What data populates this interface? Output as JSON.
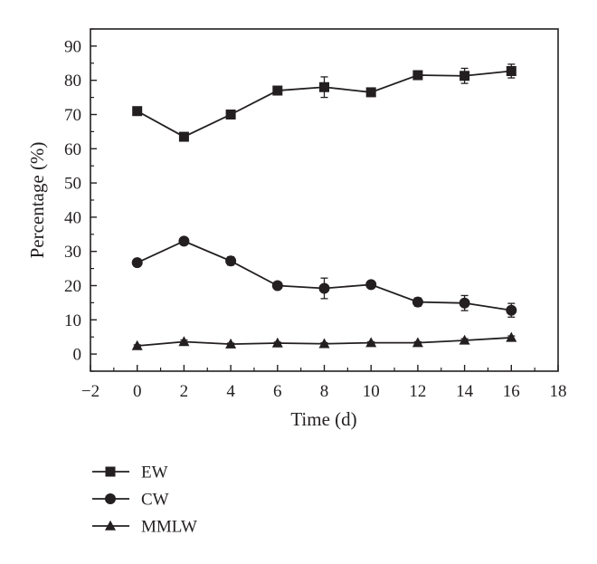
{
  "chart_data": {
    "type": "line",
    "title": "",
    "xlabel": "Time (d)",
    "ylabel": "Percentage (%)",
    "xlim": [
      -2,
      18
    ],
    "ylim": [
      -5,
      95
    ],
    "xticks": [
      -2,
      0,
      2,
      4,
      6,
      8,
      10,
      12,
      14,
      16,
      18
    ],
    "xtick_labels": [
      "−2",
      "0",
      "2",
      "4",
      "6",
      "8",
      "10",
      "12",
      "14",
      "16",
      "18"
    ],
    "yticks": [
      0,
      10,
      20,
      30,
      40,
      50,
      60,
      70,
      80,
      90
    ],
    "ytick_labels": [
      "0",
      "10",
      "20",
      "30",
      "40",
      "50",
      "60",
      "70",
      "80",
      "90"
    ],
    "grid": false,
    "legend_position": "below",
    "x": [
      0,
      2,
      4,
      6,
      8,
      10,
      12,
      14,
      16
    ],
    "series": [
      {
        "name": "EW",
        "marker": "square",
        "color": "#231f20",
        "values": [
          71,
          63.5,
          70,
          77,
          78,
          76.5,
          81.5,
          81.3,
          82.7
        ],
        "errors": [
          1,
          0.5,
          1.2,
          0.5,
          3,
          0.5,
          1.2,
          2.2,
          2
        ]
      },
      {
        "name": "CW",
        "marker": "circle",
        "color": "#231f20",
        "values": [
          26.7,
          33,
          27.2,
          20,
          19.2,
          20.3,
          15.2,
          14.9,
          12.8
        ],
        "errors": [
          1,
          0.5,
          1.2,
          0.5,
          3,
          0.5,
          1.2,
          2.2,
          2
        ]
      },
      {
        "name": "MMLW",
        "marker": "triangle",
        "color": "#231f20",
        "values": [
          2.4,
          3.6,
          2.9,
          3.2,
          3.0,
          3.3,
          3.3,
          4.0,
          4.8
        ],
        "errors": [
          0.3,
          0.5,
          0.3,
          0.3,
          0.3,
          0.3,
          0.3,
          0.5,
          0.5
        ]
      }
    ]
  }
}
